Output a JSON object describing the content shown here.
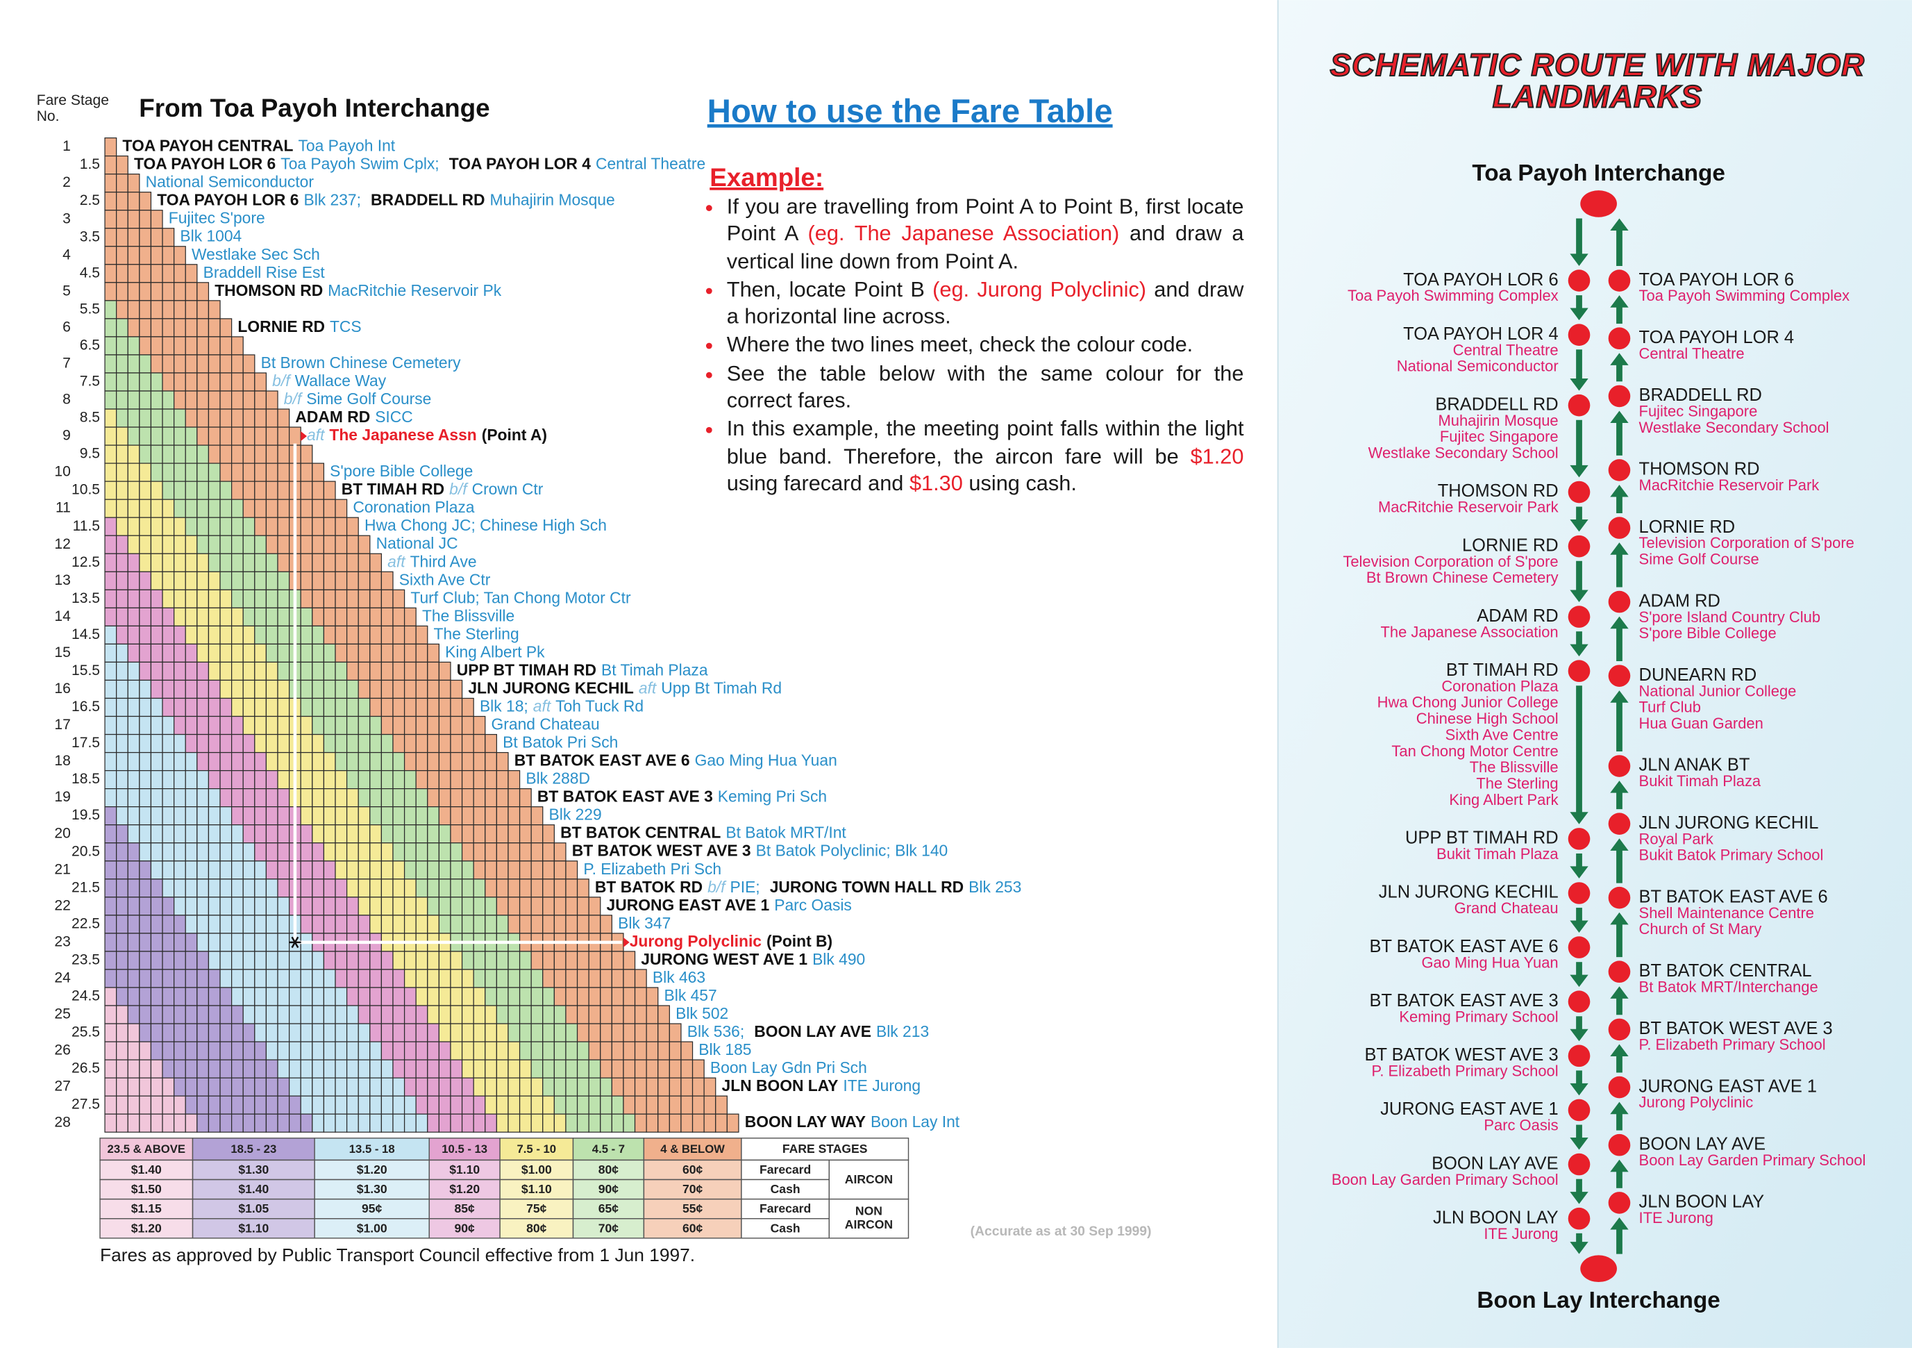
{
  "fare_chart": {
    "stage_heading": "Fare Stage No.",
    "title": "From Toa Payoh Interchange",
    "stages": [
      {
        "stage": "1",
        "items": [
          {
            "road": "TOA PAYOH CENTRAL",
            "place": "Toa Payoh Int"
          }
        ]
      },
      {
        "stage": "1.5",
        "items": [
          {
            "road": "TOA PAYOH LOR 6",
            "place": "Toa Payoh Swim Cplx;"
          },
          {
            "road": "TOA PAYOH LOR 4",
            "place": "Central Theatre"
          }
        ]
      },
      {
        "stage": "2",
        "items": [
          {
            "place": "National Semiconductor"
          }
        ]
      },
      {
        "stage": "2.5",
        "items": [
          {
            "road": "TOA PAYOH LOR 6",
            "place": "Blk 237;"
          },
          {
            "road": "BRADDELL RD",
            "place": "Muhajirin Mosque"
          }
        ]
      },
      {
        "stage": "3",
        "items": [
          {
            "place": "Fujitec S'pore"
          }
        ]
      },
      {
        "stage": "3.5",
        "items": [
          {
            "place": "Blk 1004"
          }
        ]
      },
      {
        "stage": "4",
        "items": [
          {
            "place": "Westlake Sec Sch"
          }
        ]
      },
      {
        "stage": "4.5",
        "items": [
          {
            "place": "Braddell Rise Est"
          }
        ]
      },
      {
        "stage": "5",
        "items": [
          {
            "road": "THOMSON RD",
            "place": "MacRitchie Reservoir Pk"
          }
        ]
      },
      {
        "stage": "5.5",
        "items": []
      },
      {
        "stage": "6",
        "items": [
          {
            "road": "LORNIE RD",
            "place": "TCS"
          }
        ]
      },
      {
        "stage": "6.5",
        "items": []
      },
      {
        "stage": "7",
        "items": [
          {
            "place": "Bt Brown Chinese Cemetery"
          }
        ]
      },
      {
        "stage": "7.5",
        "items": [
          {
            "note": "b/f",
            "place": "Wallace Way"
          }
        ]
      },
      {
        "stage": "8",
        "items": [
          {
            "note": "b/f",
            "place": "Sime Golf Course"
          }
        ]
      },
      {
        "stage": "8.5",
        "items": [
          {
            "road": "ADAM RD",
            "place": "SICC"
          }
        ]
      },
      {
        "stage": "9",
        "items": [
          {
            "note": "aft",
            "place": "The Japanese Assn",
            "marker": "(Point A)"
          }
        ]
      },
      {
        "stage": "9.5",
        "items": []
      },
      {
        "stage": "10",
        "items": [
          {
            "place": "S'pore Bible College"
          }
        ]
      },
      {
        "stage": "10.5",
        "items": [
          {
            "road": "BT TIMAH RD",
            "note": "b/f",
            "place": "Crown Ctr"
          }
        ]
      },
      {
        "stage": "11",
        "items": [
          {
            "place": "Coronation Plaza"
          }
        ]
      },
      {
        "stage": "11.5",
        "items": [
          {
            "place": "Hwa Chong JC;  Chinese High Sch"
          }
        ]
      },
      {
        "stage": "12",
        "items": [
          {
            "place": "National JC"
          }
        ]
      },
      {
        "stage": "12.5",
        "items": [
          {
            "note": "aft",
            "place": "Third Ave"
          }
        ]
      },
      {
        "stage": "13",
        "items": [
          {
            "place": "Sixth Ave Ctr"
          }
        ]
      },
      {
        "stage": "13.5",
        "items": [
          {
            "place": "Turf Club;  Tan Chong Motor Ctr"
          }
        ]
      },
      {
        "stage": "14",
        "items": [
          {
            "place": "The Blissville"
          }
        ]
      },
      {
        "stage": "14.5",
        "items": [
          {
            "place": "The Sterling"
          }
        ]
      },
      {
        "stage": "15",
        "items": [
          {
            "place": "King Albert Pk"
          }
        ]
      },
      {
        "stage": "15.5",
        "items": [
          {
            "road": "UPP BT TIMAH RD",
            "place": "Bt Timah Plaza"
          }
        ]
      },
      {
        "stage": "16",
        "items": [
          {
            "road": "JLN JURONG KECHIL",
            "note": "aft",
            "place": "Upp Bt Timah Rd"
          }
        ]
      },
      {
        "stage": "16.5",
        "items": [
          {
            "place": "Blk 18;"
          },
          {
            "note": "aft",
            "place": "Toh Tuck Rd"
          }
        ]
      },
      {
        "stage": "17",
        "items": [
          {
            "place": "Grand Chateau"
          }
        ]
      },
      {
        "stage": "17.5",
        "items": [
          {
            "place": "Bt Batok Pri Sch"
          }
        ]
      },
      {
        "stage": "18",
        "items": [
          {
            "road": "BT BATOK EAST AVE 6",
            "place": "Gao Ming Hua Yuan"
          }
        ]
      },
      {
        "stage": "18.5",
        "items": [
          {
            "place": "Blk 288D"
          }
        ]
      },
      {
        "stage": "19",
        "items": [
          {
            "road": "BT BATOK EAST AVE 3",
            "place": "Keming Pri Sch"
          }
        ]
      },
      {
        "stage": "19.5",
        "items": [
          {
            "place": "Blk 229"
          }
        ]
      },
      {
        "stage": "20",
        "items": [
          {
            "road": "BT BATOK CENTRAL",
            "place": "Bt Batok MRT/Int"
          }
        ]
      },
      {
        "stage": "20.5",
        "items": [
          {
            "road": "BT BATOK WEST AVE 3",
            "place": "Bt Batok Polyclinic;  Blk 140"
          }
        ]
      },
      {
        "stage": "21",
        "items": [
          {
            "place": "P. Elizabeth Pri Sch"
          }
        ]
      },
      {
        "stage": "21.5",
        "items": [
          {
            "road": "BT BATOK RD",
            "note": "b/f",
            "place": "PIE;"
          },
          {
            "road": "JURONG TOWN HALL RD",
            "place": "Blk 253"
          }
        ]
      },
      {
        "stage": "22",
        "items": [
          {
            "road": "JURONG EAST AVE 1",
            "place": "Parc Oasis"
          }
        ]
      },
      {
        "stage": "22.5",
        "items": [
          {
            "place": "Blk 347"
          }
        ]
      },
      {
        "stage": "23",
        "items": [
          {
            "place": "Jurong Polyclinic",
            "marker": "(Point B)"
          }
        ]
      },
      {
        "stage": "23.5",
        "items": [
          {
            "road": "JURONG WEST AVE 1",
            "place": "Blk 490"
          }
        ]
      },
      {
        "stage": "24",
        "items": [
          {
            "place": "Blk 463"
          }
        ]
      },
      {
        "stage": "24.5",
        "items": [
          {
            "place": "Blk 457"
          }
        ]
      },
      {
        "stage": "25",
        "items": [
          {
            "place": "Blk 502"
          }
        ]
      },
      {
        "stage": "25.5",
        "items": [
          {
            "place": "Blk 536;"
          },
          {
            "road": "BOON LAY AVE",
            "place": "Blk 213"
          }
        ]
      },
      {
        "stage": "26",
        "items": [
          {
            "place": "Blk 185"
          }
        ]
      },
      {
        "stage": "26.5",
        "items": [
          {
            "place": "Boon Lay Gdn Pri Sch"
          }
        ]
      },
      {
        "stage": "27",
        "items": [
          {
            "road": "JLN BOON LAY",
            "place": "ITE Jurong"
          }
        ]
      },
      {
        "stage": "27.5",
        "items": []
      },
      {
        "stage": "28",
        "items": [
          {
            "road": "BOON LAY WAY",
            "place": "Boon Lay Int"
          }
        ]
      }
    ],
    "note": "Fares as approved by Public Transport Council effective from 1 Jun 1997.",
    "accuracy": "(Accurate as at 30 Sep 1999)"
  },
  "fare_table": {
    "bands": [
      {
        "label": "23.5 & ABOVE",
        "color": "#f1c6da"
      },
      {
        "label": "18.5 - 23",
        "color": "#b3a2d6"
      },
      {
        "label": "13.5 - 18",
        "color": "#c5e4f2"
      },
      {
        "label": "10.5 - 13",
        "color": "#e3a3d0"
      },
      {
        "label": "7.5 - 10",
        "color": "#f5ea97"
      },
      {
        "label": "4.5 - 7",
        "color": "#bde2ae"
      },
      {
        "label": "4 & BELOW",
        "color": "#f0b08c"
      }
    ],
    "stage_header": "FARE STAGES",
    "rows": [
      {
        "fares": [
          "$1.40",
          "$1.30",
          "$1.20",
          "$1.10",
          "$1.00",
          "80¢",
          "60¢"
        ],
        "payment": "Farecard"
      },
      {
        "fares": [
          "$1.50",
          "$1.40",
          "$1.30",
          "$1.20",
          "$1.10",
          "90¢",
          "70¢"
        ],
        "payment": "Cash"
      },
      {
        "fares": [
          "$1.15",
          "$1.05",
          "95¢",
          "85¢",
          "75¢",
          "65¢",
          "55¢"
        ],
        "payment": "Farecard"
      },
      {
        "fares": [
          "$1.20",
          "$1.10",
          "$1.00",
          "90¢",
          "80¢",
          "70¢",
          "60¢"
        ],
        "payment": "Cash"
      }
    ],
    "groups": [
      {
        "label": "AIRCON"
      },
      {
        "label": "NON AIRCON"
      }
    ]
  },
  "instructions": {
    "title": "How to use the Fare Table",
    "example_heading": "Example:",
    "bullets": [
      [
        {
          "text": "If you are travelling from Point A to Point B, first locate Point A "
        },
        {
          "text": "(eg. The Japanese Association)",
          "color": "#e8202a"
        },
        {
          "text": " and draw a vertical line down from Point A."
        }
      ],
      [
        {
          "text": "Then, locate Point B "
        },
        {
          "text": "(eg. Jurong Polyclinic)",
          "color": "#e8202a"
        },
        {
          "text": " and draw a horizontal line across."
        }
      ],
      [
        {
          "text": "Where the two lines meet, check the colour code."
        }
      ],
      [
        {
          "text": "See the table below with the same colour for the correct fares."
        }
      ],
      [
        {
          "text": "In this example, the meeting point falls within the light blue band.  Therefore, the aircon fare will be "
        },
        {
          "text": "$1.20",
          "color": "#e8202a"
        },
        {
          "text": " using farecard and "
        },
        {
          "text": "$1.30",
          "color": "#e8202a"
        },
        {
          "text": " using cash."
        }
      ]
    ]
  },
  "route": {
    "title": "SCHEMATIC ROUTE WITH MAJOR LANDMARKS",
    "start": "Toa Payoh Interchange",
    "end": "Boon Lay Interchange",
    "outbound": [
      {
        "road": "TOA PAYOH LOR 6",
        "places": [
          "Toa Payoh Swimming Complex"
        ]
      },
      {
        "road": "TOA PAYOH LOR 4",
        "places": [
          "Central Theatre",
          "National Semiconductor"
        ]
      },
      {
        "road": "BRADDELL RD",
        "places": [
          "Muhajirin Mosque",
          "Fujitec Singapore",
          "Westlake Secondary School"
        ]
      },
      {
        "road": "THOMSON RD",
        "places": [
          "MacRitchie Reservoir Park"
        ]
      },
      {
        "road": "LORNIE RD",
        "places": [
          "Television Corporation of S'pore",
          "Bt Brown Chinese Cemetery"
        ]
      },
      {
        "road": "ADAM RD",
        "places": [
          "The Japanese Association"
        ]
      },
      {
        "road": "BT TIMAH RD",
        "places": [
          "Coronation Plaza",
          "Hwa Chong Junior College",
          "Chinese High School",
          "Sixth Ave Centre",
          "Tan Chong Motor Centre",
          "The Blissville",
          "The Sterling",
          "King Albert Park"
        ]
      },
      {
        "road": "UPP BT TIMAH RD",
        "places": [
          "Bukit Timah Plaza"
        ]
      },
      {
        "road": "JLN JURONG KECHIL",
        "places": [
          "Grand Chateau"
        ]
      },
      {
        "road": "BT BATOK EAST AVE 6",
        "places": [
          "Gao Ming Hua Yuan"
        ]
      },
      {
        "road": "BT BATOK EAST AVE 3",
        "places": [
          "Keming Primary School"
        ]
      },
      {
        "road": "BT BATOK WEST AVE 3",
        "places": [
          "P. Elizabeth Primary School"
        ]
      },
      {
        "road": "JURONG EAST AVE 1",
        "places": [
          "Parc Oasis"
        ]
      },
      {
        "road": "BOON LAY AVE",
        "places": [
          "Boon Lay Garden Primary School"
        ]
      },
      {
        "road": "JLN BOON LAY",
        "places": [
          "ITE Jurong"
        ]
      }
    ],
    "inbound": [
      {
        "road": "TOA PAYOH LOR 6",
        "places": [
          "Toa Payoh Swimming Complex"
        ]
      },
      {
        "road": "TOA PAYOH LOR 4",
        "places": [
          "Central Theatre"
        ]
      },
      {
        "road": "BRADDELL RD",
        "places": [
          "Fujitec Singapore",
          "Westlake Secondary School"
        ]
      },
      {
        "road": "THOMSON RD",
        "places": [
          "MacRitchie Reservoir Park"
        ]
      },
      {
        "road": "LORNIE RD",
        "places": [
          "Television Corporation of S'pore",
          "Sime Golf Course"
        ]
      },
      {
        "road": "ADAM RD",
        "places": [
          "S'pore Island Country Club",
          "S'pore Bible College"
        ]
      },
      {
        "road": "DUNEARN RD",
        "places": [
          "National Junior College",
          "Turf Club",
          "Hua Guan Garden"
        ]
      },
      {
        "road": "JLN ANAK BT",
        "places": [
          "Bukit Timah Plaza"
        ]
      },
      {
        "road": "JLN JURONG KECHIL",
        "places": [
          "Royal Park",
          "Bukit Batok Primary School"
        ]
      },
      {
        "road": "BT BATOK EAST AVE 6",
        "places": [
          "Shell Maintenance Centre",
          "Church of St Mary"
        ]
      },
      {
        "road": "BT BATOK CENTRAL",
        "places": [
          "Bt Batok MRT/Interchange"
        ]
      },
      {
        "road": "BT BATOK WEST AVE 3",
        "places": [
          "P. Elizabeth Primary School"
        ]
      },
      {
        "road": "JURONG EAST AVE 1",
        "places": [
          "Jurong Polyclinic"
        ]
      },
      {
        "road": "BOON LAY AVE",
        "places": [
          "Boon Lay Garden Primary School"
        ]
      },
      {
        "road": "JLN BOON LAY",
        "places": [
          "ITE Jurong"
        ]
      }
    ]
  }
}
